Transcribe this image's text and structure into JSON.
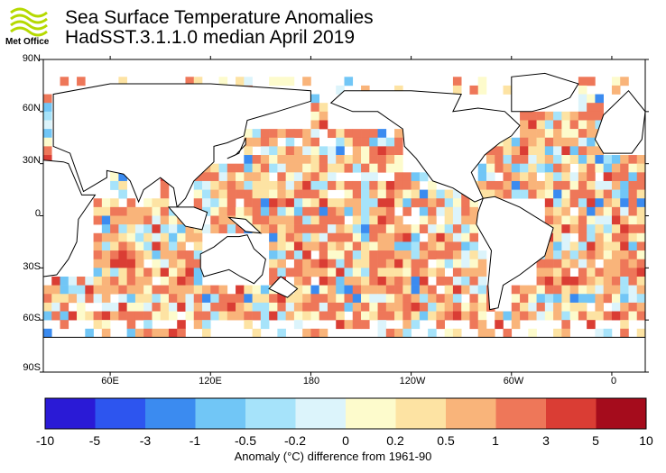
{
  "header": {
    "logo_text": "Met Office",
    "title_line1": "Sea Surface Temperature Anomalies",
    "title_line2": "HadSST.3.1.1.0 median April 2019"
  },
  "chart_data": {
    "type": "heatmap",
    "title": "Sea Surface Temperature Anomalies",
    "subtitle": "HadSST.3.1.1.0 median April 2019",
    "lat_ticks": [
      "90N",
      "60N",
      "30N",
      "0",
      "30S",
      "60S",
      "90S"
    ],
    "lon_ticks": [
      "60E",
      "120E",
      "180",
      "120W",
      "60W",
      "0"
    ],
    "ylim": [
      -90,
      90
    ],
    "xlim": [
      20,
      380
    ],
    "colorbar": {
      "label": "Anomaly (°C) difference from 1961-90",
      "tick_labels": [
        "-10",
        "-5",
        "-3",
        "-1",
        "-0.5",
        "-0.2",
        "0",
        "0.2",
        "0.5",
        "1",
        "3",
        "5",
        "10"
      ],
      "colors": [
        "#2a1ad6",
        "#2d55ef",
        "#3b8bf0",
        "#71c6f6",
        "#a6e3fa",
        "#dcf4fb",
        "#fdfbcc",
        "#fde3a3",
        "#f9b47a",
        "#ee7759",
        "#da3d34",
        "#a50c1c"
      ]
    }
  }
}
